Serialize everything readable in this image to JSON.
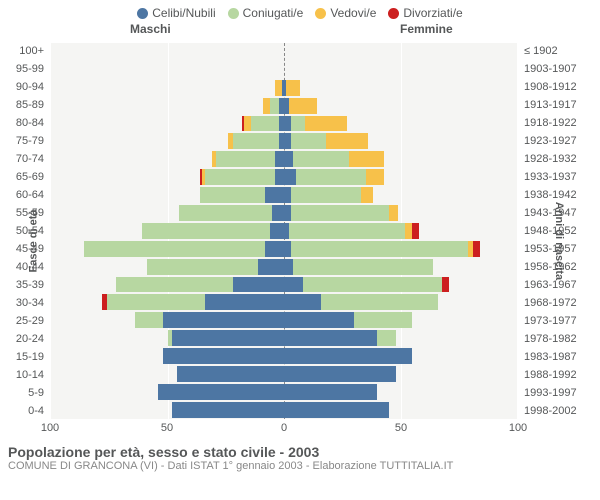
{
  "legend": {
    "items": [
      {
        "key": "single",
        "label": "Celibi/Nubili",
        "color": "#4d76a3"
      },
      {
        "key": "married",
        "label": "Coniugati/e",
        "color": "#b7d7a1"
      },
      {
        "key": "widowed",
        "label": "Vedovi/e",
        "color": "#f7c14a"
      },
      {
        "key": "divorced",
        "label": "Divorziati/e",
        "color": "#cc1f1f"
      }
    ]
  },
  "headers": {
    "male": "Maschi",
    "female": "Femmine"
  },
  "axis_titles": {
    "left": "Fasce di età",
    "right": "Anni di nascita"
  },
  "chart": {
    "type": "population-pyramid",
    "xmax": 100,
    "xticks": [
      100,
      50,
      0,
      50,
      100
    ],
    "background_color": "#f5f5f3",
    "grid_color": "#ffffff",
    "centerline_color": "#888888",
    "groups": [
      {
        "age": "100+",
        "birth": "≤ 1902",
        "m": {
          "single": 0,
          "married": 0,
          "widowed": 0,
          "divorced": 0
        },
        "f": {
          "single": 0,
          "married": 0,
          "widowed": 0,
          "divorced": 0
        }
      },
      {
        "age": "95-99",
        "birth": "1903-1907",
        "m": {
          "single": 0,
          "married": 0,
          "widowed": 0,
          "divorced": 0
        },
        "f": {
          "single": 0,
          "married": 0,
          "widowed": 0,
          "divorced": 0
        }
      },
      {
        "age": "90-94",
        "birth": "1908-1912",
        "m": {
          "single": 1,
          "married": 0,
          "widowed": 3,
          "divorced": 0
        },
        "f": {
          "single": 1,
          "married": 0,
          "widowed": 6,
          "divorced": 0
        }
      },
      {
        "age": "85-89",
        "birth": "1913-1917",
        "m": {
          "single": 2,
          "married": 4,
          "widowed": 3,
          "divorced": 0
        },
        "f": {
          "single": 2,
          "married": 0,
          "widowed": 12,
          "divorced": 0
        }
      },
      {
        "age": "80-84",
        "birth": "1918-1922",
        "m": {
          "single": 2,
          "married": 12,
          "widowed": 3,
          "divorced": 1
        },
        "f": {
          "single": 3,
          "married": 6,
          "widowed": 18,
          "divorced": 0
        }
      },
      {
        "age": "75-79",
        "birth": "1923-1927",
        "m": {
          "single": 2,
          "married": 20,
          "widowed": 2,
          "divorced": 0
        },
        "f": {
          "single": 3,
          "married": 15,
          "widowed": 18,
          "divorced": 0
        }
      },
      {
        "age": "70-74",
        "birth": "1928-1932",
        "m": {
          "single": 4,
          "married": 25,
          "widowed": 2,
          "divorced": 0
        },
        "f": {
          "single": 4,
          "married": 24,
          "widowed": 15,
          "divorced": 0
        }
      },
      {
        "age": "65-69",
        "birth": "1933-1937",
        "m": {
          "single": 4,
          "married": 30,
          "widowed": 1,
          "divorced": 1
        },
        "f": {
          "single": 5,
          "married": 30,
          "widowed": 8,
          "divorced": 0
        }
      },
      {
        "age": "60-64",
        "birth": "1938-1942",
        "m": {
          "single": 8,
          "married": 28,
          "widowed": 0,
          "divorced": 0
        },
        "f": {
          "single": 3,
          "married": 30,
          "widowed": 5,
          "divorced": 0
        }
      },
      {
        "age": "55-59",
        "birth": "1943-1947",
        "m": {
          "single": 5,
          "married": 40,
          "widowed": 0,
          "divorced": 0
        },
        "f": {
          "single": 3,
          "married": 42,
          "widowed": 4,
          "divorced": 0
        }
      },
      {
        "age": "50-54",
        "birth": "1948-1952",
        "m": {
          "single": 6,
          "married": 55,
          "widowed": 0,
          "divorced": 0
        },
        "f": {
          "single": 2,
          "married": 50,
          "widowed": 3,
          "divorced": 3
        }
      },
      {
        "age": "45-49",
        "birth": "1953-1957",
        "m": {
          "single": 8,
          "married": 78,
          "widowed": 0,
          "divorced": 0
        },
        "f": {
          "single": 3,
          "married": 76,
          "widowed": 2,
          "divorced": 3
        }
      },
      {
        "age": "40-44",
        "birth": "1958-1962",
        "m": {
          "single": 11,
          "married": 48,
          "widowed": 0,
          "divorced": 0
        },
        "f": {
          "single": 4,
          "married": 60,
          "widowed": 0,
          "divorced": 0
        }
      },
      {
        "age": "35-39",
        "birth": "1963-1967",
        "m": {
          "single": 22,
          "married": 50,
          "widowed": 0,
          "divorced": 0
        },
        "f": {
          "single": 8,
          "married": 60,
          "widowed": 0,
          "divorced": 3
        }
      },
      {
        "age": "30-34",
        "birth": "1968-1972",
        "m": {
          "single": 34,
          "married": 42,
          "widowed": 0,
          "divorced": 2
        },
        "f": {
          "single": 16,
          "married": 50,
          "widowed": 0,
          "divorced": 0
        }
      },
      {
        "age": "25-29",
        "birth": "1973-1977",
        "m": {
          "single": 52,
          "married": 12,
          "widowed": 0,
          "divorced": 0
        },
        "f": {
          "single": 30,
          "married": 25,
          "widowed": 0,
          "divorced": 0
        }
      },
      {
        "age": "20-24",
        "birth": "1978-1982",
        "m": {
          "single": 48,
          "married": 2,
          "widowed": 0,
          "divorced": 0
        },
        "f": {
          "single": 40,
          "married": 8,
          "widowed": 0,
          "divorced": 0
        }
      },
      {
        "age": "15-19",
        "birth": "1983-1987",
        "m": {
          "single": 52,
          "married": 0,
          "widowed": 0,
          "divorced": 0
        },
        "f": {
          "single": 55,
          "married": 0,
          "widowed": 0,
          "divorced": 0
        }
      },
      {
        "age": "10-14",
        "birth": "1988-1992",
        "m": {
          "single": 46,
          "married": 0,
          "widowed": 0,
          "divorced": 0
        },
        "f": {
          "single": 48,
          "married": 0,
          "widowed": 0,
          "divorced": 0
        }
      },
      {
        "age": "5-9",
        "birth": "1993-1997",
        "m": {
          "single": 54,
          "married": 0,
          "widowed": 0,
          "divorced": 0
        },
        "f": {
          "single": 40,
          "married": 0,
          "widowed": 0,
          "divorced": 0
        }
      },
      {
        "age": "0-4",
        "birth": "1998-2002",
        "m": {
          "single": 48,
          "married": 0,
          "widowed": 0,
          "divorced": 0
        },
        "f": {
          "single": 45,
          "married": 0,
          "widowed": 0,
          "divorced": 0
        }
      }
    ]
  },
  "footer": {
    "title": "Popolazione per età, sesso e stato civile - 2003",
    "subtitle": "COMUNE DI GRANCONA (VI) - Dati ISTAT 1° gennaio 2003 - Elaborazione TUTTITALIA.IT"
  },
  "typography": {
    "legend_fontsize": 12,
    "label_fontsize": 11,
    "title_fontsize": 14,
    "subtitle_fontsize": 11,
    "text_color": "#555758",
    "sub_color": "#888888"
  }
}
